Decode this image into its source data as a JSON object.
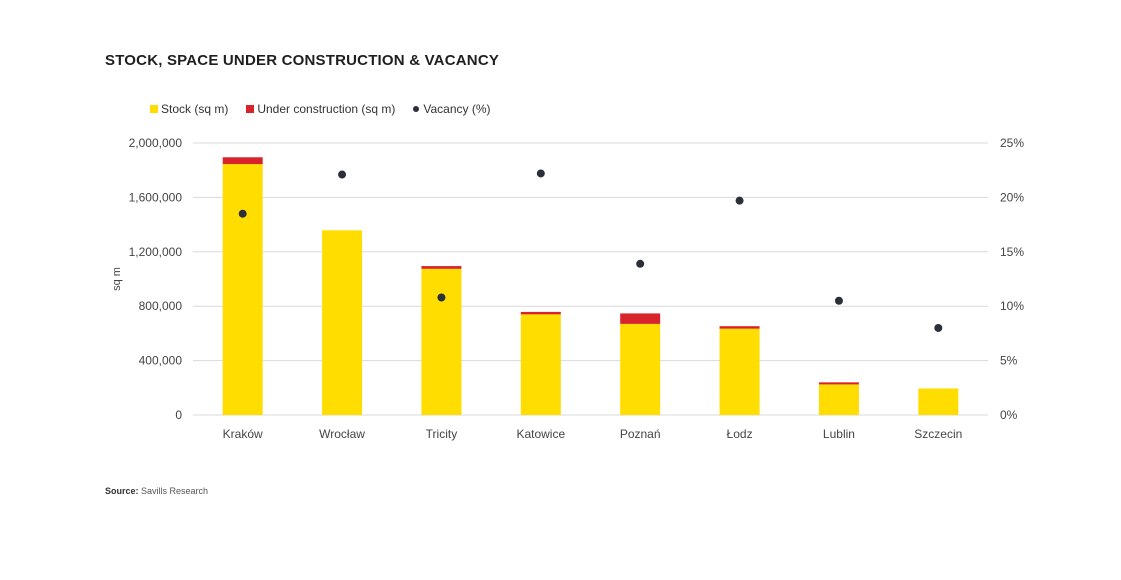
{
  "chart_data": {
    "type": "bar",
    "title": "STOCK, SPACE UNDER CONSTRUCTION & VACANCY",
    "categories": [
      "Kraków",
      "Wrocław",
      "Tricity",
      "Katowice",
      "Poznań",
      "Łodz",
      "Lublin",
      "Szczecin"
    ],
    "series": [
      {
        "name": "Stock (sq m)",
        "type": "bar",
        "stacked": true,
        "axis": "left",
        "color": "#FFDD00",
        "values": [
          1845000,
          1358000,
          1075000,
          740000,
          670000,
          635000,
          225000,
          195000
        ]
      },
      {
        "name": "Under construction (sq m)",
        "type": "bar",
        "stacked": true,
        "axis": "left",
        "color": "#D8232A",
        "values": [
          50000,
          0,
          20000,
          18000,
          77000,
          18000,
          15000,
          0
        ]
      },
      {
        "name": "Vacancy (%)",
        "type": "scatter",
        "axis": "right",
        "color": "#2b2f3a",
        "values": [
          18.5,
          22.1,
          10.8,
          22.2,
          13.9,
          19.7,
          10.5,
          8.0
        ]
      }
    ],
    "ylabel": "sq m",
    "ylim": [
      0,
      2000000
    ],
    "yticks": [
      "0",
      "400,000",
      "800,000",
      "1,200,000",
      "1,600,000",
      "2,000,000"
    ],
    "y2lim": [
      0,
      25
    ],
    "y2ticks": [
      "0%",
      "5%",
      "10%",
      "15%",
      "20%",
      "25%"
    ],
    "grid": true,
    "legend_position": "top-left"
  },
  "legend": {
    "stock": "Stock (sq m)",
    "construction": "Under construction (sq m)",
    "vacancy": "Vacancy (%)"
  },
  "source": {
    "label": "Source:",
    "text": "Savills Research"
  },
  "colors": {
    "stock": "#FFDD00",
    "construction": "#D8232A",
    "vacancy": "#2b2f3a",
    "grid": "#d9d9d9",
    "axis_text": "#444444"
  }
}
